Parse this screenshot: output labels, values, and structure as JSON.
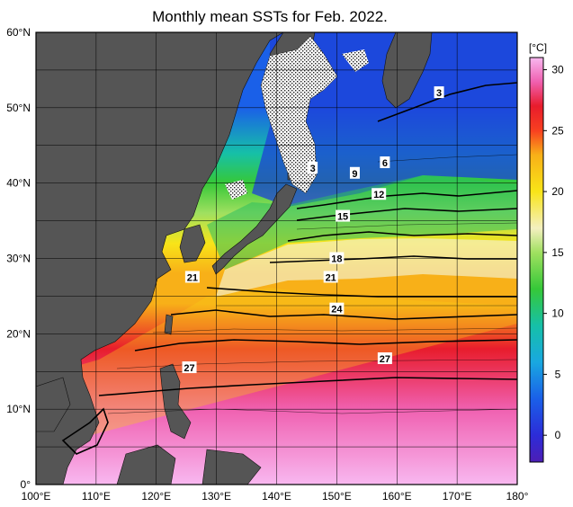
{
  "title": "Monthly mean SSTs for Feb. 2022.",
  "map": {
    "lon_range": [
      100,
      180
    ],
    "lat_range": [
      0,
      60
    ],
    "lon_ticks": [
      "100°E",
      "110°E",
      "120°E",
      "130°E",
      "140°E",
      "150°E",
      "160°E",
      "170°E",
      "180°"
    ],
    "lat_ticks": [
      "0°",
      "10°N",
      "20°N",
      "30°N",
      "40°N",
      "50°N",
      "60°N"
    ],
    "grid": true,
    "land_color": "#555555",
    "sea_ice_pattern": "dotted"
  },
  "contour_labels": [
    {
      "text": "3",
      "lon": 167,
      "lat": 52
    },
    {
      "text": "3",
      "lon": 146,
      "lat": 42
    },
    {
      "text": "6",
      "lon": 158,
      "lat": 42.7
    },
    {
      "text": "9",
      "lon": 153,
      "lat": 41.3
    },
    {
      "text": "12",
      "lon": 157,
      "lat": 38.5
    },
    {
      "text": "15",
      "lon": 151,
      "lat": 35.6
    },
    {
      "text": "18",
      "lon": 150,
      "lat": 30
    },
    {
      "text": "21",
      "lon": 126,
      "lat": 27.5
    },
    {
      "text": "21",
      "lon": 149,
      "lat": 27.5
    },
    {
      "text": "24",
      "lon": 150,
      "lat": 23.3
    },
    {
      "text": "27",
      "lon": 125.5,
      "lat": 15.5
    },
    {
      "text": "27",
      "lon": 158,
      "lat": 16.7
    }
  ],
  "colorbar": {
    "unit": "[°C]",
    "min": -2.2,
    "max": 31,
    "ticks": [
      {
        "value": 30,
        "label": "30"
      },
      {
        "value": 25,
        "label": "25"
      },
      {
        "value": 20,
        "label": "20"
      },
      {
        "value": 15,
        "label": "15"
      },
      {
        "value": 10,
        "label": "10"
      },
      {
        "value": 5,
        "label": "5"
      },
      {
        "value": 0,
        "label": "0"
      }
    ],
    "stops": [
      {
        "v": -2,
        "color": "#4a1fb8"
      },
      {
        "v": 0,
        "color": "#2c2cd8"
      },
      {
        "v": 3,
        "color": "#1a60e8"
      },
      {
        "v": 6,
        "color": "#19a8e0"
      },
      {
        "v": 9,
        "color": "#16c0a8"
      },
      {
        "v": 12,
        "color": "#36c838"
      },
      {
        "v": 15,
        "color": "#a0e060"
      },
      {
        "v": 17,
        "color": "#f4f0c0"
      },
      {
        "v": 20,
        "color": "#f8e418"
      },
      {
        "v": 23,
        "color": "#f8b018"
      },
      {
        "v": 25,
        "color": "#f84020"
      },
      {
        "v": 27,
        "color": "#e81c2c"
      },
      {
        "v": 29,
        "color": "#f060b0"
      },
      {
        "v": 31,
        "color": "#f8b8f0"
      }
    ]
  }
}
